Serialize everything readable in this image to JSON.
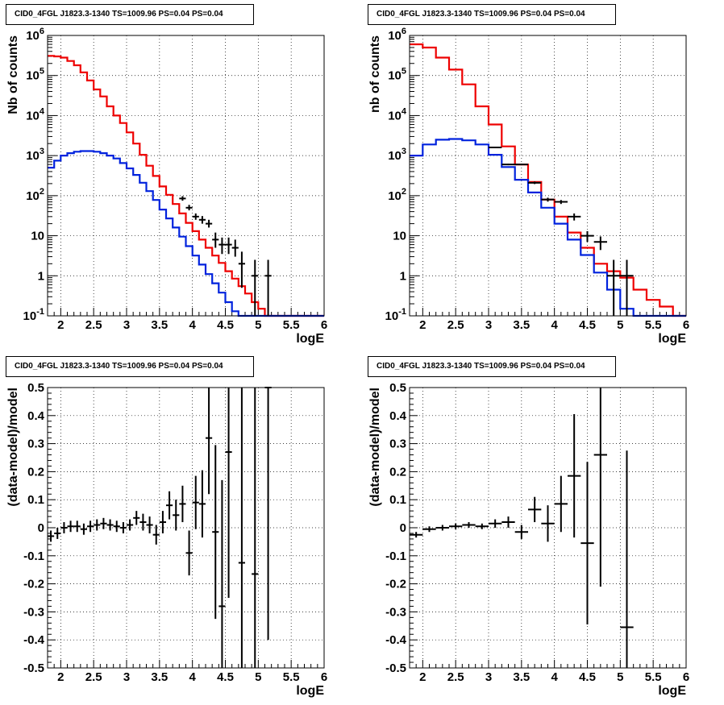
{
  "colors": {
    "data": "#000000",
    "model": "#ee0000",
    "component": "#0022dd",
    "frame": "#000000",
    "grid": "#000000"
  },
  "chart_data": [
    {
      "type": "histogram",
      "scale": "log-y",
      "title": "CID0_4FGL J1823.3-1340 TS=1009.96 PS=0.04 PS=0.04",
      "xlabel": "logE",
      "ylabel": "Nb of counts",
      "xlim": [
        1.8,
        6.0
      ],
      "ylim": [
        0.1,
        1000000
      ],
      "xticks": [
        "2",
        "2.5",
        "3",
        "3.5",
        "4",
        "4.5",
        "5",
        "5.5",
        "6"
      ],
      "yticks": [
        "10^-1",
        "1",
        "10",
        "10^2",
        "10^3",
        "10^4",
        "10^5",
        "10^6"
      ],
      "grid": true,
      "bin_edges": [
        1.8,
        1.9,
        2.0,
        2.1,
        2.2,
        2.3,
        2.4,
        2.5,
        2.6,
        2.7,
        2.8,
        2.9,
        3.0,
        3.1,
        3.2,
        3.3,
        3.4,
        3.5,
        3.6,
        3.7,
        3.8,
        3.9,
        4.0,
        4.1,
        4.2,
        4.3,
        4.4,
        4.5,
        4.6,
        4.7,
        4.8,
        4.9,
        5.0,
        5.1,
        5.2,
        5.3,
        5.4,
        5.5,
        5.6,
        5.7,
        5.8,
        5.9,
        6.0
      ],
      "series": [
        {
          "role": "model",
          "values": [
            310000,
            300000,
            280000,
            230000,
            180000,
            120000,
            75000,
            45000,
            30000,
            17000,
            10000,
            6500,
            3800,
            2000,
            1050,
            560,
            310,
            170,
            105,
            62,
            36,
            21,
            13,
            8,
            5,
            3.2,
            2.1,
            1.3,
            0.85,
            0.55,
            0.36,
            0.22,
            0.15
          ]
        },
        {
          "role": "component",
          "values": [
            500,
            750,
            1000,
            1150,
            1250,
            1300,
            1300,
            1250,
            1150,
            1000,
            850,
            650,
            480,
            330,
            210,
            130,
            78,
            45,
            27,
            16,
            9.5,
            5.5,
            3.2,
            1.9,
            1.1,
            0.65,
            0.38,
            0.22,
            0.13
          ]
        },
        {
          "role": "data",
          "points": [
            [
              3.85,
              85
            ],
            [
              3.95,
              50
            ],
            [
              4.05,
              30
            ],
            [
              4.15,
              25
            ],
            [
              4.25,
              20
            ],
            [
              4.35,
              8
            ],
            [
              4.45,
              6
            ],
            [
              4.55,
              6
            ],
            [
              4.65,
              5
            ],
            [
              4.75,
              2
            ],
            [
              4.95,
              1
            ],
            [
              5.15,
              1
            ]
          ],
          "errors": [
            [
              10,
              12
            ],
            [
              7,
              9
            ],
            [
              5,
              6
            ],
            [
              5,
              6
            ],
            [
              4,
              5
            ],
            [
              3,
              4
            ],
            [
              2.5,
              3
            ],
            [
              2.5,
              3
            ],
            [
              2,
              3
            ],
            [
              1.5,
              2
            ],
            [
              1,
              1.5
            ],
            [
              1,
              1.5
            ]
          ]
        }
      ]
    },
    {
      "type": "histogram",
      "scale": "log-y",
      "title": "CID0_4FGL J1823.3-1340 TS=1009.96 PS=0.04 PS=0.04",
      "xlabel": "logE",
      "ylabel": "nb of counts",
      "xlim": [
        1.8,
        6.0
      ],
      "ylim": [
        0.1,
        1000000
      ],
      "xticks": [
        "2",
        "2.5",
        "3",
        "3.5",
        "4",
        "4.5",
        "5",
        "5.5",
        "6"
      ],
      "yticks": [
        "10^-1",
        "1",
        "10",
        "10^2",
        "10^3",
        "10^4",
        "10^5",
        "10^6"
      ],
      "grid": true,
      "bin_edges": [
        1.8,
        2.0,
        2.2,
        2.4,
        2.6,
        2.8,
        3.0,
        3.2,
        3.4,
        3.6,
        3.8,
        4.0,
        4.2,
        4.4,
        4.6,
        4.8,
        5.0,
        5.2,
        5.4,
        5.6,
        5.8,
        6.0
      ],
      "series": [
        {
          "role": "model",
          "values": [
            600000,
            500000,
            280000,
            140000,
            60000,
            17000,
            6000,
            1700,
            600,
            220,
            80,
            30,
            12,
            5,
            2,
            1.3,
            0.9,
            0.45,
            0.25,
            0.17
          ]
        },
        {
          "role": "component",
          "values": [
            1000,
            1900,
            2500,
            2600,
            2400,
            1900,
            1050,
            520,
            250,
            120,
            50,
            20,
            8,
            3.3,
            1.2,
            0.45,
            0.15
          ]
        },
        {
          "role": "data",
          "points": [
            [
              3.1,
              1600
            ],
            [
              3.3,
              600
            ],
            [
              3.5,
              600
            ],
            [
              3.7,
              210
            ],
            [
              3.9,
              80
            ],
            [
              4.1,
              70
            ],
            [
              4.3,
              30
            ],
            [
              4.5,
              10
            ],
            [
              4.7,
              7
            ],
            [
              4.9,
              1
            ],
            [
              5.1,
              1
            ]
          ],
          "errors": [
            [
              40,
              40
            ],
            [
              25,
              25
            ],
            [
              25,
              25
            ],
            [
              15,
              15
            ],
            [
              9,
              9
            ],
            [
              8,
              8
            ],
            [
              6,
              6
            ],
            [
              3,
              3
            ],
            [
              2.6,
              2.6
            ],
            [
              1,
              1.5
            ],
            [
              1,
              1.5
            ]
          ]
        }
      ]
    },
    {
      "type": "scatter",
      "title": "CID0_4FGL J1823.3-1340 TS=1009.96 PS=0.04 PS=0.04",
      "xlabel": "logE",
      "ylabel": "(data-model)/model",
      "xlim": [
        1.8,
        6.0
      ],
      "ylim": [
        -0.5,
        0.5
      ],
      "xticks": [
        "2",
        "2.5",
        "3",
        "3.5",
        "4",
        "4.5",
        "5",
        "5.5",
        "6"
      ],
      "yticks": [
        "-0.5",
        "-0.4",
        "-0.3",
        "-0.2",
        "-0.1",
        "0",
        "0.1",
        "0.2",
        "0.3",
        "0.4",
        "0.5"
      ],
      "grid": true,
      "bin_width": 0.1,
      "points": [
        [
          1.85,
          -0.03
        ],
        [
          1.95,
          -0.02
        ],
        [
          2.05,
          0.0
        ],
        [
          2.15,
          0.005
        ],
        [
          2.25,
          0.005
        ],
        [
          2.35,
          -0.005
        ],
        [
          2.45,
          0.005
        ],
        [
          2.55,
          0.01
        ],
        [
          2.65,
          0.015
        ],
        [
          2.75,
          0.01
        ],
        [
          2.85,
          0.005
        ],
        [
          2.95,
          0.0
        ],
        [
          3.05,
          0.01
        ],
        [
          3.15,
          0.035
        ],
        [
          3.25,
          0.02
        ],
        [
          3.35,
          0.01
        ],
        [
          3.45,
          -0.025
        ],
        [
          3.55,
          0.02
        ],
        [
          3.65,
          0.08
        ],
        [
          3.75,
          0.045
        ],
        [
          3.85,
          0.085
        ],
        [
          3.95,
          -0.09
        ],
        [
          4.05,
          0.09
        ],
        [
          4.15,
          0.085
        ],
        [
          4.25,
          0.32
        ],
        [
          4.35,
          -0.015
        ],
        [
          4.45,
          -0.28
        ],
        [
          4.55,
          0.27
        ],
        [
          4.75,
          -0.125
        ],
        [
          4.95,
          -0.165
        ],
        [
          5.15,
          0.5
        ]
      ],
      "errors": [
        0.02,
        0.02,
        0.02,
        0.02,
        0.02,
        0.02,
        0.02,
        0.02,
        0.02,
        0.02,
        0.02,
        0.02,
        0.02,
        0.025,
        0.03,
        0.03,
        0.035,
        0.04,
        0.05,
        0.055,
        0.065,
        0.08,
        0.095,
        0.12,
        0.2,
        0.31,
        0.45,
        0.52,
        0.7,
        0.8,
        0.9
      ]
    },
    {
      "type": "scatter",
      "title": "CID0_4FGL J1823.3-1340 TS=1009.96 PS=0.04 PS=0.04",
      "xlabel": "logE",
      "ylabel": "(data-model)/model",
      "xlim": [
        1.8,
        6.0
      ],
      "ylim": [
        -0.5,
        0.5
      ],
      "xticks": [
        "2",
        "2.5",
        "3",
        "3.5",
        "4",
        "4.5",
        "5",
        "5.5",
        "6"
      ],
      "yticks": [
        "-0.5",
        "-0.4",
        "-0.3",
        "-0.2",
        "-0.1",
        "0",
        "0.1",
        "0.2",
        "0.3",
        "0.4",
        "0.5"
      ],
      "grid": true,
      "bin_width": 0.2,
      "points": [
        [
          1.9,
          -0.025
        ],
        [
          2.1,
          -0.005
        ],
        [
          2.3,
          0.0
        ],
        [
          2.5,
          0.005
        ],
        [
          2.7,
          0.01
        ],
        [
          2.9,
          0.005
        ],
        [
          3.1,
          0.015
        ],
        [
          3.3,
          0.02
        ],
        [
          3.5,
          -0.015
        ],
        [
          3.7,
          0.065
        ],
        [
          3.9,
          0.015
        ],
        [
          4.1,
          0.085
        ],
        [
          4.3,
          0.185
        ],
        [
          4.5,
          -0.055
        ],
        [
          4.7,
          0.26
        ],
        [
          5.1,
          -0.355
        ]
      ],
      "errors": [
        0.01,
        0.01,
        0.01,
        0.01,
        0.01,
        0.01,
        0.015,
        0.02,
        0.025,
        0.045,
        0.065,
        0.1,
        0.22,
        0.29,
        0.47,
        0.63
      ]
    }
  ]
}
